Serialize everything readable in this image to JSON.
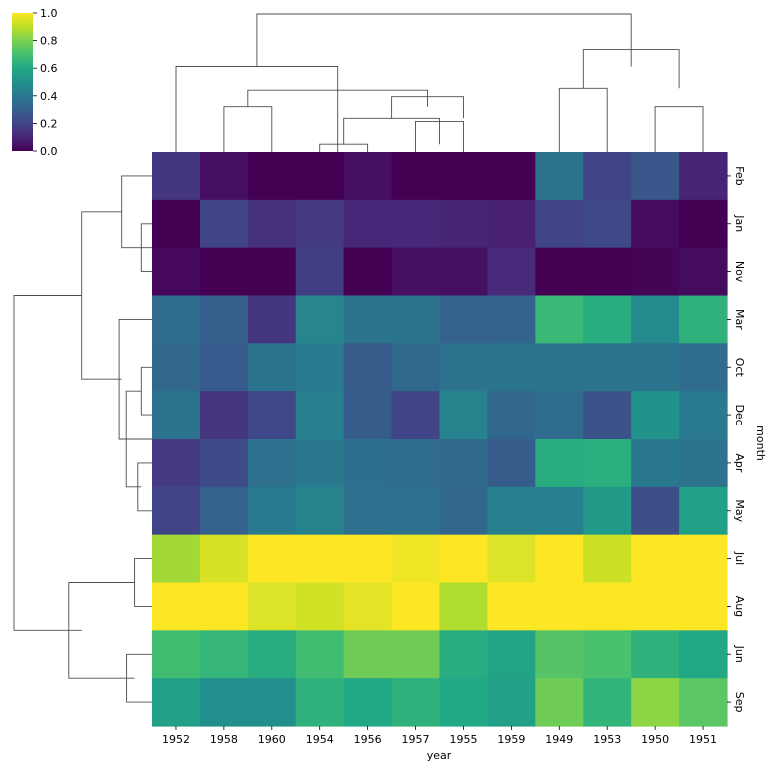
{
  "chart_data": {
    "type": "heatmap",
    "title": "",
    "xlabel": "year",
    "ylabel": "month",
    "columns": [
      "1952",
      "1958",
      "1960",
      "1954",
      "1956",
      "1957",
      "1955",
      "1959",
      "1949",
      "1953",
      "1950",
      "1951"
    ],
    "rows": [
      "Feb",
      "Jan",
      "Nov",
      "Mar",
      "Oct",
      "Dec",
      "Apr",
      "May",
      "Jul",
      "Aug",
      "Jun",
      "Sep"
    ],
    "values": [
      [
        0.16,
        0.04,
        0.0,
        0.0,
        0.04,
        0.0,
        0.0,
        0.0,
        0.38,
        0.2,
        0.27,
        0.1
      ],
      [
        0.0,
        0.2,
        0.14,
        0.17,
        0.11,
        0.11,
        0.1,
        0.09,
        0.2,
        0.22,
        0.03,
        0.0
      ],
      [
        0.02,
        0.0,
        0.0,
        0.18,
        0.0,
        0.04,
        0.04,
        0.12,
        0.0,
        0.0,
        0.01,
        0.03
      ],
      [
        0.35,
        0.3,
        0.16,
        0.45,
        0.38,
        0.38,
        0.31,
        0.32,
        0.67,
        0.62,
        0.47,
        0.64
      ],
      [
        0.33,
        0.28,
        0.38,
        0.41,
        0.29,
        0.34,
        0.38,
        0.38,
        0.38,
        0.38,
        0.38,
        0.35
      ],
      [
        0.38,
        0.15,
        0.21,
        0.43,
        0.29,
        0.2,
        0.44,
        0.33,
        0.35,
        0.25,
        0.51,
        0.41
      ],
      [
        0.17,
        0.23,
        0.37,
        0.4,
        0.36,
        0.35,
        0.34,
        0.29,
        0.62,
        0.63,
        0.4,
        0.38
      ],
      [
        0.2,
        0.31,
        0.41,
        0.44,
        0.37,
        0.37,
        0.33,
        0.43,
        0.43,
        0.54,
        0.24,
        0.56
      ],
      [
        0.86,
        0.94,
        1.0,
        1.0,
        1.0,
        0.98,
        1.0,
        0.95,
        1.0,
        0.92,
        1.0,
        1.0
      ],
      [
        1.0,
        1.0,
        0.95,
        0.93,
        0.96,
        1.0,
        0.88,
        1.0,
        1.0,
        1.0,
        1.0,
        1.0
      ],
      [
        0.69,
        0.66,
        0.62,
        0.69,
        0.78,
        0.78,
        0.62,
        0.58,
        0.73,
        0.71,
        0.64,
        0.6
      ],
      [
        0.56,
        0.49,
        0.49,
        0.64,
        0.6,
        0.64,
        0.6,
        0.56,
        0.78,
        0.65,
        0.83,
        0.74
      ]
    ],
    "colorbar": {
      "colormap": "viridis",
      "vmin": 0.0,
      "vmax": 1.0,
      "ticks": [
        "0.0",
        "0.2",
        "0.4",
        "0.6",
        "0.8",
        "1.0"
      ]
    },
    "col_dendrogram": [
      [
        [
          10,
          10
        ],
        [
          0,
          0.145
        ],
        [
          0,
          0.145
        ],
        [
          11,
          11
        ]
      ],
      [
        [
          3,
          3
        ],
        [
          0,
          0.025
        ],
        [
          0,
          0.025
        ],
        [
          4,
          4
        ]
      ],
      [
        [
          5,
          5
        ],
        [
          0,
          0.098
        ],
        [
          0,
          0.098
        ],
        [
          6,
          6
        ]
      ],
      [
        [
          3.5,
          3.5
        ],
        [
          0.025,
          0.108
        ],
        [
          0.025,
          0.108
        ],
        [
          5.5,
          5.5
        ]
      ],
      [
        [
          1,
          1
        ],
        [
          0,
          0.145
        ],
        [
          0,
          0.145
        ],
        [
          2,
          2
        ]
      ],
      [
        [
          4.5,
          4.5
        ],
        [
          0.108,
          0.177
        ],
        [
          0.108,
          0.177
        ],
        [
          6,
          6
        ]
      ],
      [
        [
          1.5,
          1.5
        ],
        [
          0.145,
          0.198
        ],
        [
          0.145,
          0.198
        ],
        [
          5.25,
          5.25
        ]
      ],
      [
        [
          0,
          0
        ],
        [
          0,
          0.274
        ],
        [
          0,
          0.274
        ],
        [
          3.375,
          3.375
        ]
      ],
      [
        [
          8,
          8
        ],
        [
          0,
          0.204
        ],
        [
          0,
          0.204
        ],
        [
          9,
          9
        ]
      ],
      [
        [
          8.5,
          8.5
        ],
        [
          0.204,
          0.328
        ],
        [
          0.204,
          0.328
        ],
        [
          10.5,
          10.5
        ]
      ],
      [
        [
          1.69,
          1.69
        ],
        [
          0.274,
          0.442
        ],
        [
          0.274,
          0.442
        ],
        [
          9.5,
          9.5
        ]
      ]
    ],
    "row_dendrogram": [
      [
        [
          1,
          1
        ],
        [
          0,
          0.024
        ],
        [
          0,
          0.024
        ],
        [
          2,
          2
        ]
      ],
      [
        [
          0,
          0
        ],
        [
          0,
          0.068
        ],
        [
          0,
          0.068
        ],
        [
          1.5,
          1.5
        ]
      ],
      [
        [
          4,
          4
        ],
        [
          0,
          0.024
        ],
        [
          0,
          0.024
        ],
        [
          5,
          5
        ]
      ],
      [
        [
          6,
          6
        ],
        [
          0,
          0.032
        ],
        [
          0,
          0.032
        ],
        [
          7,
          7
        ]
      ],
      [
        [
          4.5,
          4.5
        ],
        [
          0.024,
          0.058
        ],
        [
          0.024,
          0.058
        ],
        [
          6.5,
          6.5
        ]
      ],
      [
        [
          3,
          3
        ],
        [
          0,
          0.074
        ],
        [
          0,
          0.074
        ],
        [
          5.5,
          5.5
        ]
      ],
      [
        [
          0.75,
          0.75
        ],
        [
          0.068,
          0.158
        ],
        [
          0.068,
          0.158
        ],
        [
          4.25,
          4.25
        ]
      ],
      [
        [
          8,
          8
        ],
        [
          0,
          0.039
        ],
        [
          0,
          0.039
        ],
        [
          9,
          9
        ]
      ],
      [
        [
          10,
          10
        ],
        [
          0,
          0.057
        ],
        [
          0,
          0.057
        ],
        [
          11,
          11
        ]
      ],
      [
        [
          8.5,
          8.5
        ],
        [
          0.039,
          0.187
        ],
        [
          0.039,
          0.187
        ],
        [
          10.5,
          10.5
        ]
      ],
      [
        [
          2.5,
          2.5
        ],
        [
          0.158,
          0.31
        ],
        [
          0.158,
          0.31
        ],
        [
          9.5,
          9.5
        ]
      ]
    ],
    "grid": false,
    "legend": "none"
  }
}
